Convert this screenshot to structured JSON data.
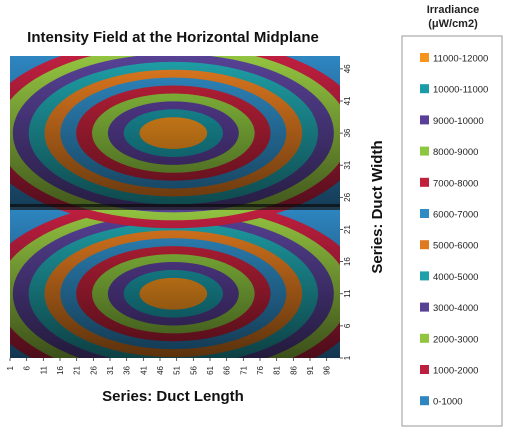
{
  "chart_data": {
    "type": "heatmap",
    "title": "Intensity Field at the Horizontal Midplane",
    "xlabel": "Series: Duct Length",
    "ylabel": "Series: Duct Width",
    "x_ticks": [
      "1",
      "6",
      "11",
      "16",
      "21",
      "26",
      "31",
      "36",
      "41",
      "46",
      "51",
      "56",
      "61",
      "66",
      "71",
      "76",
      "81",
      "86",
      "91",
      "96"
    ],
    "y_ticks": [
      "1",
      "6",
      "11",
      "16",
      "21",
      "26",
      "31",
      "36",
      "41",
      "46"
    ],
    "xlim": [
      1,
      100
    ],
    "ylim": [
      1,
      48
    ],
    "legend": {
      "title_line1": "Irradiance",
      "title_line2": "(μW/cm2)",
      "placement": "right",
      "items": [
        {
          "label": "11000-12000",
          "color": "#F7941D"
        },
        {
          "label": "10000-11000",
          "color": "#1A9BA8"
        },
        {
          "label": "9000-10000",
          "color": "#5A3F99"
        },
        {
          "label": "8000-9000",
          "color": "#8DC63F"
        },
        {
          "label": "7000-8000",
          "color": "#C1213A"
        },
        {
          "label": "6000-7000",
          "color": "#2F8BC4"
        },
        {
          "label": "5000-6000",
          "color": "#E07A1F"
        },
        {
          "label": "4000-5000",
          "color": "#1FA0A8"
        },
        {
          "label": "3000-4000",
          "color": "#574195"
        },
        {
          "label": "2000-3000",
          "color": "#93C440"
        },
        {
          "label": "1000-2000",
          "color": "#BF1F3F"
        },
        {
          "label": "0-1000",
          "color": "#2E86C1"
        }
      ]
    },
    "peaks": [
      {
        "x": 50,
        "y": 11,
        "value": 11500
      },
      {
        "x": 50,
        "y": 36,
        "value": 11500
      }
    ]
  }
}
